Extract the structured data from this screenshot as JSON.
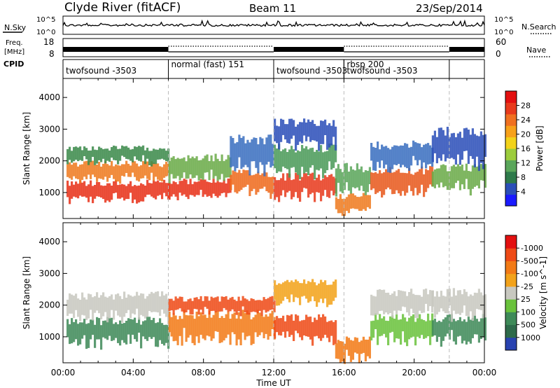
{
  "header": {
    "station": "Clyde River (fitACF)",
    "beam": "Beam 11",
    "date": "23/Sep/2014"
  },
  "side_labels": {
    "nsky": "N.Sky",
    "freq_line1": "Freq.",
    "freq_line2": "[MHz]",
    "cpid": "CPID",
    "nsearch": "N.Search",
    "nave": "Nave"
  },
  "chart_data": [
    {
      "type": "line",
      "name": "noise-panel",
      "left_axis_ticks": [
        "10^5",
        "10^0"
      ],
      "right_axis_ticks": [
        "10^5",
        "10^0"
      ],
      "series": [
        {
          "name": "N.Sky",
          "style": "solid"
        },
        {
          "name": "N.Search",
          "style": "dotted"
        }
      ]
    },
    {
      "type": "line",
      "name": "freq-nave-panel",
      "left_axis_ticks": [
        "18",
        "8"
      ],
      "right_axis_ticks": [
        "60",
        "0"
      ],
      "series": [
        {
          "name": "Freq",
          "style": "solid"
        },
        {
          "name": "Nave",
          "style": "dotted"
        }
      ]
    },
    {
      "type": "table",
      "name": "cpid-segments",
      "segments": [
        {
          "label": "twofsound -3503",
          "start": 0,
          "end": 6
        },
        {
          "label": "normal (fast) 151",
          "start": 6,
          "end": 12
        },
        {
          "label": "twofsound -3503",
          "start": 12,
          "end": 16
        },
        {
          "label": "rbsp 200",
          "start": 16,
          "end": 22
        },
        {
          "label": "twofsound -3503",
          "start": 16,
          "end": 22
        },
        {
          "label": "",
          "start": 22,
          "end": 24
        }
      ]
    },
    {
      "type": "heatmap",
      "name": "power-panel",
      "xlabel": "",
      "ylabel": "Slant Range [km]",
      "yticks": [
        1000,
        2000,
        3000,
        4000
      ],
      "ylim": [
        180,
        4600
      ],
      "xlim": [
        0,
        24
      ],
      "colorbar": {
        "label": "Power [dB]",
        "ticks": [
          "4",
          "8",
          "12",
          "16",
          "20",
          "24",
          "28"
        ],
        "colors": [
          "#1a1aff",
          "#2b4fb8",
          "#2e7a4a",
          "#5aa65a",
          "#9ccc3c",
          "#f2d21a",
          "#f7a11a",
          "#f07020",
          "#e83a1c",
          "#e31010"
        ]
      },
      "bands": [
        {
          "x0": 0.2,
          "x1": 6,
          "y0": 700,
          "y1": 1300,
          "color": "#e83018"
        },
        {
          "x0": 0.2,
          "x1": 6,
          "y0": 1300,
          "y1": 1900,
          "color": "#ee7a1e"
        },
        {
          "x0": 0.2,
          "x1": 6,
          "y0": 1900,
          "y1": 2400,
          "color": "#3b8a4a"
        },
        {
          "x0": 6,
          "x1": 9.5,
          "y0": 800,
          "y1": 1350,
          "color": "#e83018"
        },
        {
          "x0": 6,
          "x1": 9.5,
          "y0": 1350,
          "y1": 2100,
          "color": "#6aaa48"
        },
        {
          "x0": 9.5,
          "x1": 12,
          "y0": 900,
          "y1": 1600,
          "color": "#ee6a1c"
        },
        {
          "x0": 9.5,
          "x1": 12,
          "y0": 1600,
          "y1": 2700,
          "color": "#3a6ec0"
        },
        {
          "x0": 12,
          "x1": 15.5,
          "y0": 750,
          "y1": 1500,
          "color": "#e83a1c"
        },
        {
          "x0": 12,
          "x1": 15.5,
          "y0": 1500,
          "y1": 2400,
          "color": "#4a9a58"
        },
        {
          "x0": 12,
          "x1": 15.5,
          "y0": 2400,
          "y1": 3200,
          "color": "#2b4fb8"
        },
        {
          "x0": 15.5,
          "x1": 17.5,
          "y0": 300,
          "y1": 900,
          "color": "#ee7a1e"
        },
        {
          "x0": 15.5,
          "x1": 17.5,
          "y0": 900,
          "y1": 1800,
          "color": "#5aa65a"
        },
        {
          "x0": 17.5,
          "x1": 21,
          "y0": 900,
          "y1": 1700,
          "color": "#e8581c"
        },
        {
          "x0": 17.5,
          "x1": 21,
          "y0": 1700,
          "y1": 2500,
          "color": "#3a6ec0"
        },
        {
          "x0": 21,
          "x1": 24,
          "y0": 1000,
          "y1": 1800,
          "color": "#6aaa48"
        },
        {
          "x0": 21,
          "x1": 24,
          "y0": 1800,
          "y1": 2900,
          "color": "#2b4fb8"
        }
      ]
    },
    {
      "type": "heatmap",
      "name": "velocity-panel",
      "xlabel": "Time UT",
      "ylabel": "Slant Range [km]",
      "yticks": [
        1000,
        2000,
        3000,
        4000
      ],
      "ylim": [
        180,
        4600
      ],
      "xlim": [
        0,
        24
      ],
      "xticks": [
        "00:00",
        "04:00",
        "08:00",
        "12:00",
        "16:00",
        "20:00",
        "00:00"
      ],
      "colorbar": {
        "label": "Velocity [m s^-1]",
        "ticks": [
          "1000",
          "500",
          "100",
          "25",
          "-25",
          "-100",
          "-500",
          "-1000"
        ],
        "colors": [
          "#2842b0",
          "#2e6a4a",
          "#3e8a58",
          "#6ac23c",
          "#c8c8c0",
          "#f2a21a",
          "#f27a16",
          "#ee4a16",
          "#e31010"
        ]
      },
      "bands": [
        {
          "x0": 0.2,
          "x1": 6,
          "y0": 700,
          "y1": 1500,
          "color": "#3e8a58"
        },
        {
          "x0": 0.2,
          "x1": 6,
          "y0": 1500,
          "y1": 2300,
          "color": "#c8c8c0"
        },
        {
          "x0": 6,
          "x1": 12,
          "y0": 800,
          "y1": 1700,
          "color": "#f27a16"
        },
        {
          "x0": 6,
          "x1": 12,
          "y0": 1700,
          "y1": 2200,
          "color": "#ee4a16"
        },
        {
          "x0": 12,
          "x1": 15.5,
          "y0": 800,
          "y1": 1600,
          "color": "#ee4a16"
        },
        {
          "x0": 12,
          "x1": 15.5,
          "y0": 2000,
          "y1": 2700,
          "color": "#f2a21a"
        },
        {
          "x0": 15.5,
          "x1": 17.5,
          "y0": 200,
          "y1": 900,
          "color": "#f27a16"
        },
        {
          "x0": 17.5,
          "x1": 21,
          "y0": 800,
          "y1": 1600,
          "color": "#6ac23c"
        },
        {
          "x0": 17.5,
          "x1": 21,
          "y0": 1600,
          "y1": 2400,
          "color": "#c8c8c0"
        },
        {
          "x0": 21,
          "x1": 24,
          "y0": 800,
          "y1": 1600,
          "color": "#3e8a58"
        },
        {
          "x0": 21,
          "x1": 24,
          "y0": 1600,
          "y1": 2400,
          "color": "#c8c8c0"
        }
      ]
    }
  ]
}
